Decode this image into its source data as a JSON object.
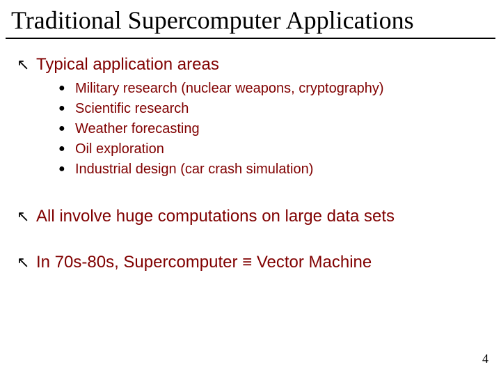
{
  "title": "Traditional Supercomputer Applications",
  "colors": {
    "heading_text": "#000000",
    "body_text": "#800000",
    "bullet_arrow": "#000000",
    "bullet_dot": "#000000",
    "underline": "#000000",
    "background": "#ffffff"
  },
  "typography": {
    "title_font": "Times New Roman",
    "title_size_pt": 28,
    "body_font": "Verdana",
    "body_size_pt": 18,
    "sub_font": "Tahoma",
    "sub_size_pt": 15
  },
  "bullets": {
    "level1_glyph": "↖",
    "level2_glyph": "●"
  },
  "points": [
    {
      "text": "Typical application areas",
      "sub": [
        "Military research (nuclear weapons, cryptography)",
        "Scientific research",
        "Weather forecasting",
        "Oil exploration",
        "Industrial design (car crash simulation)"
      ]
    },
    {
      "text": "All involve huge computations on large data sets",
      "sub": []
    },
    {
      "text": "In 70s-80s, Supercomputer ≡ Vector Machine",
      "sub": []
    }
  ],
  "page_number": "4"
}
